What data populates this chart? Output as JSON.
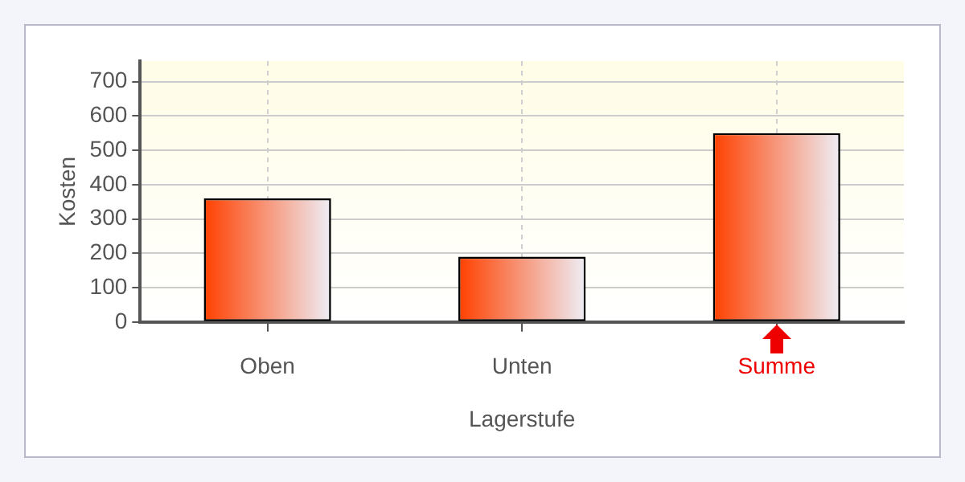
{
  "chart_data": {
    "type": "bar",
    "xlabel": "Lagerstufe",
    "ylabel": "Kosten",
    "categories": [
      "Oben",
      "Unten",
      "Summe"
    ],
    "values": [
      360,
      190,
      550
    ],
    "color": "#ff4000",
    "ylim": [
      0,
      760
    ],
    "yticks": [
      0,
      100,
      200,
      300,
      400,
      500,
      600,
      700
    ],
    "grid": true,
    "legend": false
  }
}
